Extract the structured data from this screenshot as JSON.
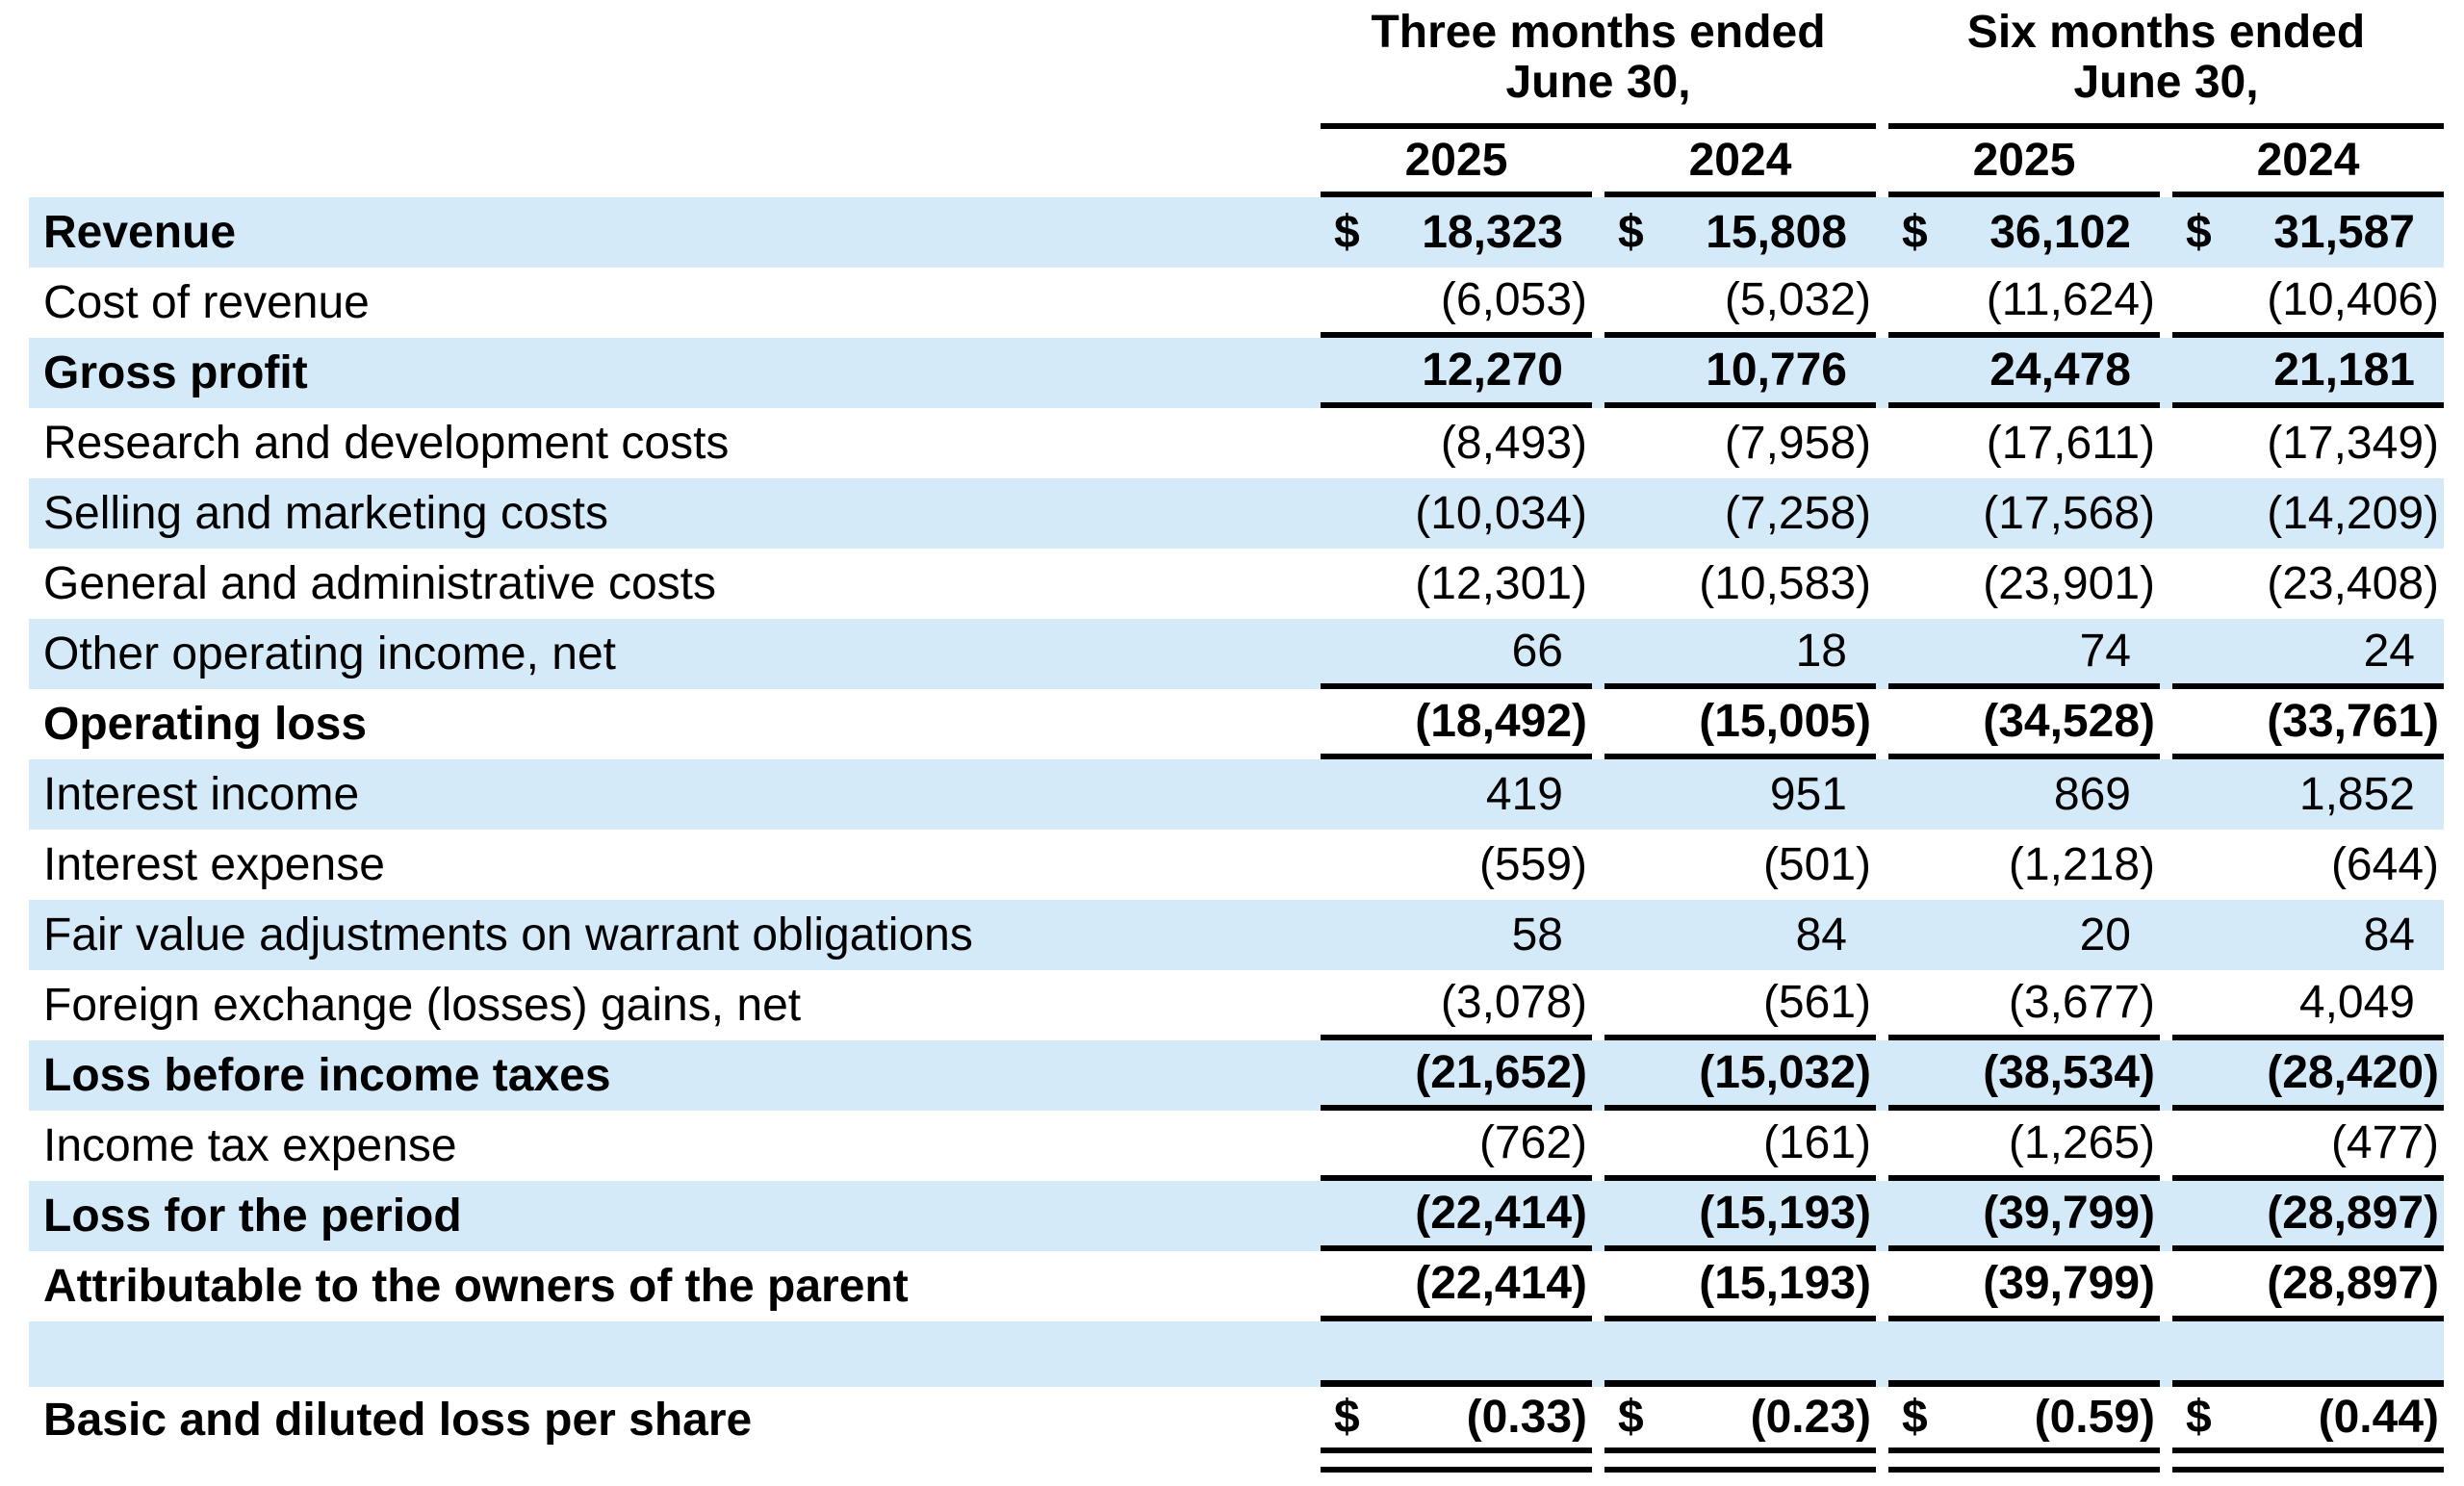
{
  "page": {
    "background": "#ffffff",
    "text_color": "#000000",
    "stripe_color": "#d5eaf9",
    "rule_color": "#000000"
  },
  "table": {
    "currency_symbol": "$",
    "groups": [
      {
        "line1": "Three months ended",
        "line2": "June 30,",
        "years": [
          "2025",
          "2024"
        ]
      },
      {
        "line1": "Six months ended",
        "line2": "June 30,",
        "years": [
          "2025",
          "2024"
        ]
      }
    ],
    "rows": [
      {
        "label": "Revenue",
        "values": [
          "18,323",
          "15,808",
          "36,102",
          "31,587"
        ],
        "bold": true,
        "shaded": true,
        "dollar": true
      },
      {
        "label": "Cost of revenue",
        "values": [
          "(6,053)",
          "(5,032)",
          "(11,624)",
          "(10,406)"
        ],
        "rule_below": true
      },
      {
        "label": "Gross profit",
        "values": [
          "12,270",
          "10,776",
          "24,478",
          "21,181"
        ],
        "bold": true,
        "shaded": true,
        "rule_below": true
      },
      {
        "label": "Research and development costs",
        "values": [
          "(8,493)",
          "(7,958)",
          "(17,611)",
          "(17,349)"
        ]
      },
      {
        "label": "Selling and marketing costs",
        "values": [
          "(10,034)",
          "(7,258)",
          "(17,568)",
          "(14,209)"
        ],
        "shaded": true
      },
      {
        "label": "General and administrative costs",
        "values": [
          "(12,301)",
          "(10,583)",
          "(23,901)",
          "(23,408)"
        ]
      },
      {
        "label": "Other operating income, net",
        "values": [
          "66",
          "18",
          "74",
          "24"
        ],
        "shaded": true,
        "rule_below": true
      },
      {
        "label": "Operating loss",
        "values": [
          "(18,492)",
          "(15,005)",
          "(34,528)",
          "(33,761)"
        ],
        "bold": true,
        "rule_below": true
      },
      {
        "label": "Interest income",
        "values": [
          "419",
          "951",
          "869",
          "1,852"
        ],
        "shaded": true
      },
      {
        "label": "Interest expense",
        "values": [
          "(559)",
          "(501)",
          "(1,218)",
          "(644)"
        ]
      },
      {
        "label": "Fair value adjustments on warrant obligations",
        "values": [
          "58",
          "84",
          "20",
          "84"
        ],
        "shaded": true
      },
      {
        "label": "Foreign exchange (losses) gains, net",
        "values": [
          "(3,078)",
          "(561)",
          "(3,677)",
          "4,049"
        ],
        "rule_below": true
      },
      {
        "label": "Loss before income taxes",
        "values": [
          "(21,652)",
          "(15,032)",
          "(38,534)",
          "(28,420)"
        ],
        "bold": true,
        "shaded": true,
        "rule_below": true
      },
      {
        "label": "Income tax expense",
        "values": [
          "(762)",
          "(161)",
          "(1,265)",
          "(477)"
        ],
        "rule_below": true
      },
      {
        "label": "Loss for the period",
        "values": [
          "(22,414)",
          "(15,193)",
          "(39,799)",
          "(28,897)"
        ],
        "bold": true,
        "shaded": true,
        "rule_below": true
      },
      {
        "label": "Attributable to the owners of the parent",
        "values": [
          "(22,414)",
          "(15,193)",
          "(39,799)",
          "(28,897)"
        ],
        "bold": true,
        "rule_below": true
      },
      {
        "label": "",
        "values": [
          "",
          "",
          "",
          ""
        ],
        "shaded": true,
        "spacer": true
      },
      {
        "label": "Basic and diluted loss per share",
        "values": [
          "(0.33)",
          "(0.23)",
          "(0.59)",
          "(0.44)"
        ],
        "bold": true,
        "dollar": true,
        "double_rule": true
      }
    ]
  }
}
